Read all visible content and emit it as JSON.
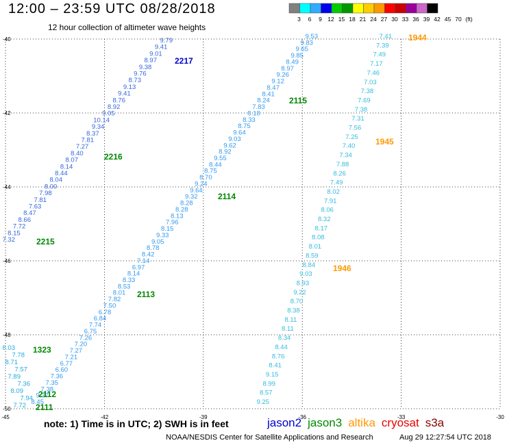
{
  "title": "12:00 – 23:59 UTC 08/28/2018",
  "subtitle": "12 hour collection of altimeter wave heights",
  "note": "note:  1) Time is in UTC; 2) SWH is in feet",
  "credit": "NOAA/NESDIS Center for Satellite Applications and Research",
  "timestamp": "Aug 29 12:27:54 UTC 2018",
  "satellites": [
    {
      "name": "jason2",
      "color": "#0000cc"
    },
    {
      "name": "jason3",
      "color": "#008800"
    },
    {
      "name": "altika",
      "color": "#ff9900"
    },
    {
      "name": "cryosat",
      "color": "#ee0000"
    },
    {
      "name": "s3a",
      "color": "#880000"
    }
  ],
  "colorbar": {
    "colors": [
      "#808080",
      "#00ffff",
      "#33aaff",
      "#0000ee",
      "#00cc00",
      "#009900",
      "#ffff00",
      "#ffcc00",
      "#ff9900",
      "#ff0000",
      "#cc0000",
      "#990099",
      "#cc66cc",
      "#000000"
    ],
    "labels": [
      "3",
      "6",
      "9",
      "12",
      "15",
      "18",
      "21",
      "24",
      "27",
      "30",
      "33",
      "36",
      "39",
      "42",
      "45",
      "70",
      "(ft)"
    ]
  },
  "chart_data": {
    "type": "map",
    "x_range": [
      -45,
      -30
    ],
    "y_range": [
      -50,
      -40
    ],
    "xticks": [
      "-45",
      "-42",
      "-39",
      "-36",
      "-33",
      "-30"
    ],
    "yticks": [
      "-40",
      "-42",
      "-44",
      "-46",
      "-48",
      "-50"
    ],
    "tracks": [
      {
        "label": "2217",
        "color": "#0000cc",
        "values": [
          "9.79",
          "9.41",
          "9.01",
          "8.97",
          "9.38",
          "9.76",
          "8.73",
          "9.13",
          "9.41",
          "8.76",
          "8.92",
          "9.05",
          "10.14",
          "9.34",
          "8.37",
          "7.81",
          "7.27",
          "8.40",
          "8.07",
          "8.14",
          "8.44",
          "8.04",
          "8.00",
          "7.98",
          "7.81",
          "7.63",
          "8.47",
          "8.66",
          "7.72",
          "8.15",
          "7.32"
        ]
      },
      {
        "label": "2216",
        "color": "#008800",
        "values": []
      },
      {
        "label": "2215",
        "color": "#008800",
        "values": []
      },
      {
        "label": "2115",
        "color": "#008800",
        "values": [
          "9.53",
          "9.83",
          "9.65",
          "9.85",
          "8.49",
          "8.97",
          "9.26",
          "9.12",
          "8.47",
          "8.41",
          "8.24",
          "7.83",
          "8.18",
          "8.33",
          "8.75",
          "9.64",
          "9.03",
          "9.62",
          "8.92",
          "9.55",
          "8.44",
          "8.75",
          "8.70",
          "9.24",
          "9.64",
          "9.32",
          "8.28",
          "8.28",
          "8.13",
          "7.96",
          "8.15",
          "9.33",
          "9.05",
          "8.78",
          "8.42",
          "7.14",
          "6.97",
          "8.14",
          "8.33",
          "8.53",
          "8.01",
          "7.82",
          "7.50",
          "6.78",
          "6.84",
          "7.74",
          "6.75",
          "7.26",
          "7.20",
          "7.27",
          "7.21",
          "6.77",
          "6.60",
          "7.36",
          "7.35",
          "7.38",
          "9.37",
          "8.45"
        ]
      },
      {
        "label": "2114",
        "color": "#008800",
        "values": []
      },
      {
        "label": "2113",
        "color": "#008800",
        "values": []
      },
      {
        "label": "1944",
        "color": "#ff9900",
        "values": [
          "7.41",
          "7.39",
          "7.49",
          "7.17",
          "7.46",
          "7.03",
          "7.38",
          "7.69",
          "7.38",
          "7.31",
          "7.56",
          "7.25",
          "7.40",
          "7.34",
          "7.88",
          "8.26",
          "7.49",
          "8.02",
          "7.91",
          "8.06",
          "8.32",
          "8.17",
          "8.08",
          "8.01",
          "8.59",
          "8.84",
          "9.03",
          "8.93",
          "9.22",
          "8.70",
          "8.38",
          "8.11",
          "8.11",
          "8.34",
          "8.44",
          "8.76",
          "8.41",
          "9.15",
          "8.99",
          "8.57",
          "9.25"
        ]
      },
      {
        "label": "1945",
        "color": "#ff9900",
        "values": []
      },
      {
        "label": "1946",
        "color": "#ff9900",
        "values": []
      },
      {
        "label": "1323",
        "color": "#008800",
        "values": [
          "8.03",
          "7.78",
          "8.71",
          "7.57",
          "7.89",
          "7.36",
          "8.09",
          "7.94",
          "7.72"
        ]
      },
      {
        "label": "2112",
        "color": "#008800",
        "values": []
      },
      {
        "label": "2111",
        "color": "#008800",
        "values": []
      }
    ]
  }
}
